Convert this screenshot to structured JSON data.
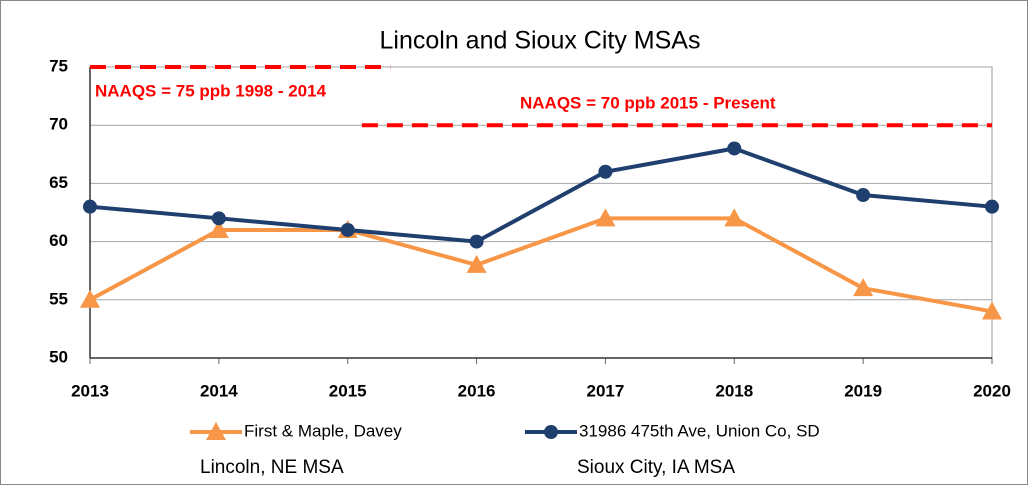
{
  "chart_data": {
    "type": "line",
    "title": "Lincoln and Sioux City MSAs",
    "x": [
      2013,
      2014,
      2015,
      2016,
      2017,
      2018,
      2019,
      2020
    ],
    "xlim": [
      2013,
      2020
    ],
    "xticks": [
      2013,
      2014,
      2015,
      2016,
      2017,
      2018,
      2019,
      2020
    ],
    "ylim": [
      50,
      75
    ],
    "yticks": [
      50,
      55,
      60,
      65,
      70,
      75
    ],
    "grid": true,
    "series": [
      {
        "name": "First & Maple, Davey",
        "color": "#f79646",
        "marker": "triangle",
        "values": [
          55,
          61,
          61,
          58,
          62,
          62,
          56,
          54
        ]
      },
      {
        "name": "31986 475th Ave, Union Co, SD",
        "color": "#1f3f6e",
        "marker": "circle",
        "values": [
          63,
          62,
          61,
          60,
          66,
          68,
          64,
          63
        ]
      }
    ],
    "legend_notes": [
      "Lincoln, NE MSA",
      "Sioux City, IA MSA"
    ],
    "reference_lines": [
      {
        "label": "NAAQS = 75 ppb 1998 - 2014",
        "value": 75,
        "x": [
          2013,
          2015.33
        ],
        "color": "#ff0000"
      },
      {
        "label": "NAAQS = 70 ppb 2015 - Present",
        "value": 70,
        "x": [
          2015.11,
          2020
        ],
        "color": "#ff0000"
      }
    ]
  }
}
